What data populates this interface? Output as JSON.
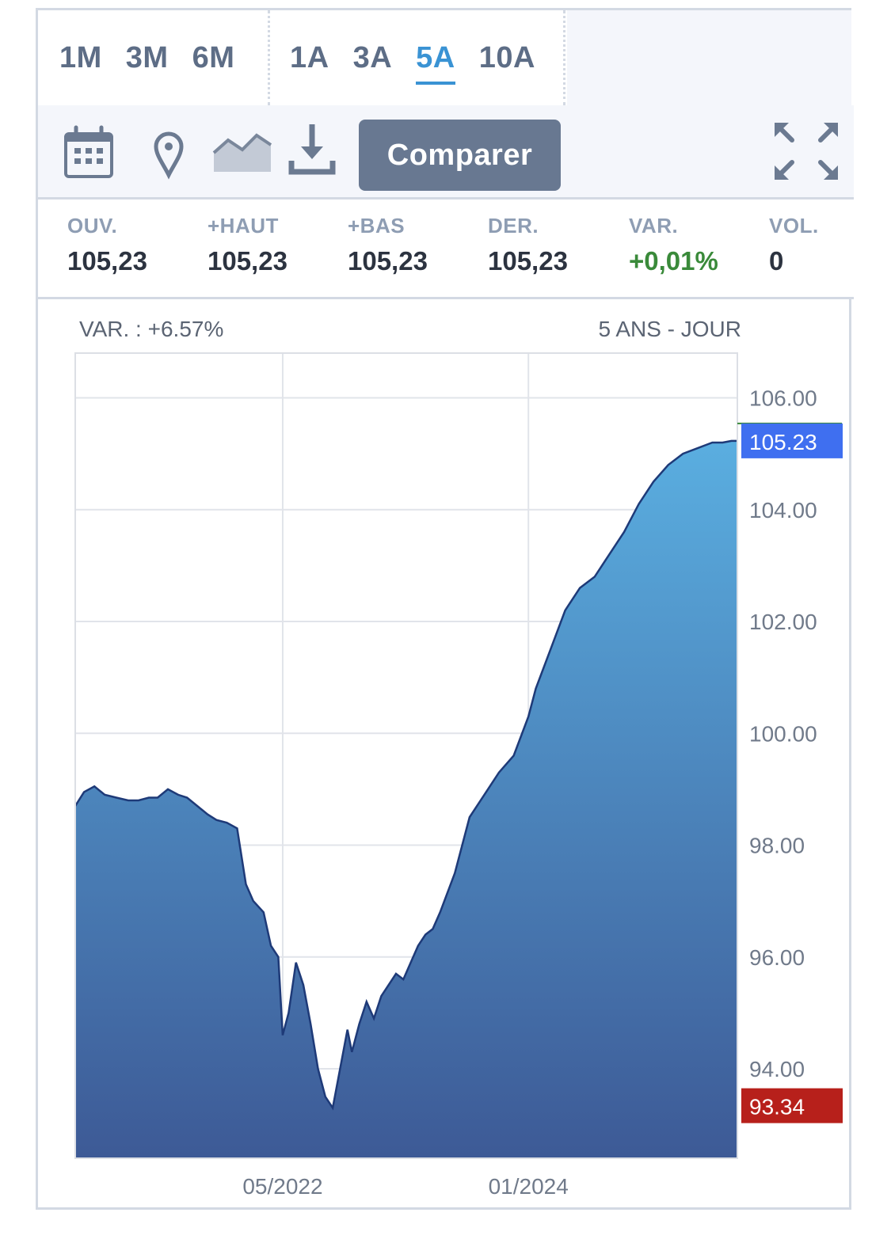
{
  "periods": {
    "group1": [
      {
        "label": "1M",
        "active": false
      },
      {
        "label": "3M",
        "active": false
      },
      {
        "label": "6M",
        "active": false
      }
    ],
    "group2": [
      {
        "label": "1A",
        "active": false
      },
      {
        "label": "3A",
        "active": false
      },
      {
        "label": "5A",
        "active": true
      },
      {
        "label": "10A",
        "active": false
      }
    ]
  },
  "toolbar": {
    "icons": [
      "calendar-icon",
      "pin-icon",
      "area-chart-icon",
      "download-icon",
      "fullscreen-icon"
    ],
    "compare_label": "Comparer"
  },
  "stats": [
    {
      "label": "OUV.",
      "value": "105,23"
    },
    {
      "label": "+HAUT",
      "value": "105,23"
    },
    {
      "label": "+BAS",
      "value": "105,23"
    },
    {
      "label": "DER.",
      "value": "105,23"
    },
    {
      "label": "VAR.",
      "value": "+0,01%",
      "positive": true
    },
    {
      "label": "VOL.",
      "value": "0"
    }
  ],
  "chart_header": {
    "variation": "VAR. : +6.57%",
    "range": "5 ANS - JOUR"
  },
  "colors": {
    "accent": "#3a93d4",
    "positive": "#3a8a3a",
    "last_price_badge": "#3f6ff0",
    "low_badge": "#b7201b",
    "area_top": "#5aaee0",
    "area_bottom": "#3d5a96",
    "line": "#1e3a78"
  },
  "chart_data": {
    "type": "area",
    "title": "",
    "xlabel": "",
    "ylabel": "",
    "x_range": [
      2020.92,
      2025.42
    ],
    "ylim": [
      92.4,
      106.8
    ],
    "y_ticks": [
      94,
      96,
      98,
      100,
      102,
      104,
      106
    ],
    "y_tick_labels": [
      "94.00",
      "96.00",
      "98.00",
      "100.00",
      "102.00",
      "104.00",
      "106.00"
    ],
    "x_ticks": [
      2022.33,
      2024.0
    ],
    "x_tick_labels": [
      "05/2022",
      "01/2024"
    ],
    "last_value": 105.23,
    "last_label": "105.23",
    "low_value": 93.34,
    "low_label": "93.34",
    "grid": true,
    "series": [
      {
        "x": [
          2020.92,
          2020.98,
          2021.05,
          2021.12,
          2021.2,
          2021.28,
          2021.35,
          2021.42,
          2021.48,
          2021.55,
          2021.62,
          2021.68,
          2021.75,
          2021.82,
          2021.88,
          2021.95,
          2022.02,
          2022.08,
          2022.13,
          2022.2,
          2022.25,
          2022.3,
          2022.33,
          2022.37,
          2022.42,
          2022.47,
          2022.52,
          2022.57,
          2022.62,
          2022.67,
          2022.72,
          2022.77,
          2022.8,
          2022.85,
          2022.9,
          2022.95,
          2023.0,
          2023.05,
          2023.1,
          2023.15,
          2023.2,
          2023.25,
          2023.3,
          2023.35,
          2023.4,
          2023.5,
          2023.6,
          2023.7,
          2023.8,
          2023.9,
          2024.0,
          2024.05,
          2024.15,
          2024.25,
          2024.35,
          2024.45,
          2024.55,
          2024.65,
          2024.75,
          2024.85,
          2024.95,
          2025.05,
          2025.15,
          2025.25,
          2025.32,
          2025.38,
          2025.42
        ],
        "y": [
          98.7,
          98.95,
          99.05,
          98.9,
          98.85,
          98.8,
          98.8,
          98.85,
          98.85,
          99.0,
          98.9,
          98.85,
          98.7,
          98.55,
          98.45,
          98.4,
          98.3,
          97.3,
          97.0,
          96.8,
          96.2,
          96.0,
          94.6,
          95.0,
          95.9,
          95.5,
          94.8,
          94.0,
          93.5,
          93.3,
          94.0,
          94.7,
          94.3,
          94.8,
          95.2,
          94.9,
          95.3,
          95.5,
          95.7,
          95.6,
          95.9,
          96.2,
          96.4,
          96.5,
          96.8,
          97.5,
          98.5,
          98.9,
          99.3,
          99.6,
          100.3,
          100.8,
          101.5,
          102.2,
          102.6,
          102.8,
          103.2,
          103.6,
          104.1,
          104.5,
          104.8,
          105.0,
          105.1,
          105.2,
          105.2,
          105.23,
          105.23
        ]
      }
    ]
  }
}
